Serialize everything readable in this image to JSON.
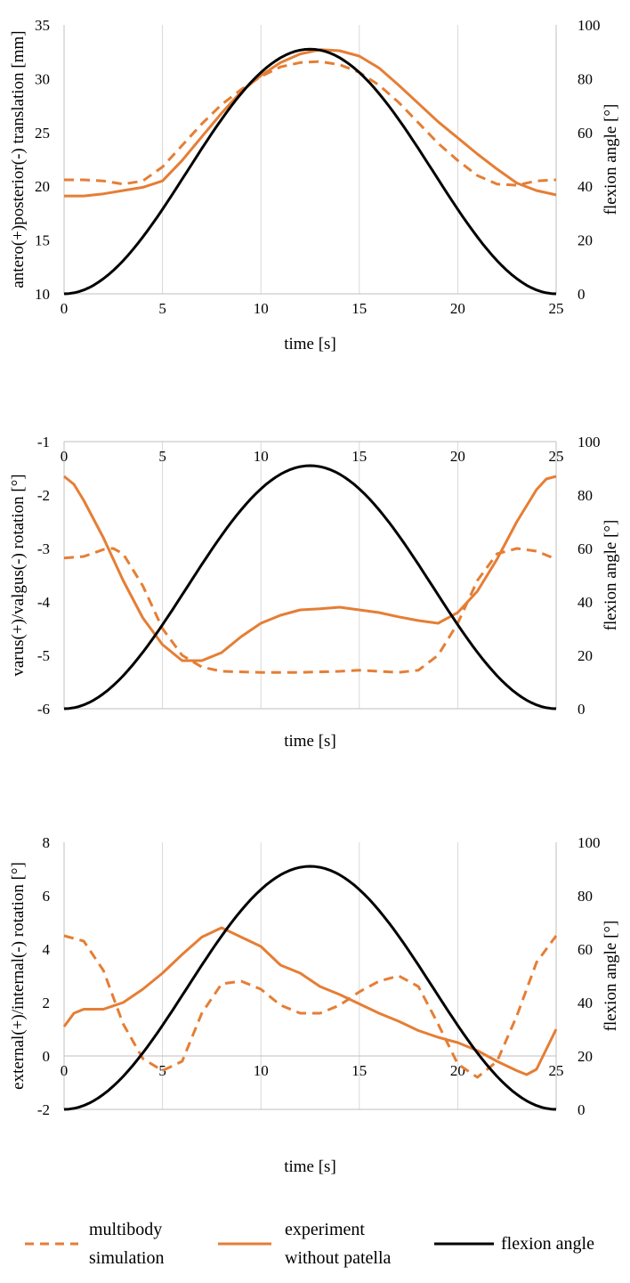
{
  "colors": {
    "simulation": "#E57E35",
    "experiment": "#E57E35",
    "flexion": "#000000",
    "grid": "#d9d9d9",
    "axis": "#bfbfbf"
  },
  "legend": [
    {
      "label": "multibody simulation",
      "lines": [
        "multibody",
        "simulation"
      ],
      "style": "dashed",
      "color": "#E57E35"
    },
    {
      "label": "experiment without patella",
      "lines": [
        "experiment",
        "without patella"
      ],
      "style": "solid",
      "color": "#E57E35"
    },
    {
      "label": "flexion angle",
      "lines": [
        "flexion angle"
      ],
      "style": "solid",
      "color": "#000000"
    }
  ],
  "chart_data": [
    {
      "type": "line",
      "title": "",
      "xlabel": "time [s]",
      "ylabel": "antero(+)posterior(-) translation [mm]",
      "y2label": "flexion angle [°]",
      "xlim": [
        0,
        25
      ],
      "ylim": [
        10,
        35
      ],
      "y2lim": [
        0,
        100
      ],
      "xticks": [
        "0",
        "5",
        "10",
        "15",
        "20",
        "25"
      ],
      "yticks": [
        "10",
        "15",
        "20",
        "25",
        "30",
        "35"
      ],
      "y2ticks": [
        "0",
        "20",
        "40",
        "60",
        "80",
        "100"
      ],
      "x_axis_position": "bottom",
      "grid": "vertical",
      "series": [
        {
          "name": "multibody simulation",
          "axis": "left",
          "style": "dashed",
          "points": [
            [
              0,
              20.6
            ],
            [
              1,
              20.6
            ],
            [
              2,
              20.5
            ],
            [
              3,
              20.2
            ],
            [
              4,
              20.5
            ],
            [
              5,
              21.8
            ],
            [
              6,
              23.8
            ],
            [
              7,
              25.8
            ],
            [
              8,
              27.6
            ],
            [
              9,
              29.0
            ],
            [
              10,
              30.2
            ],
            [
              11,
              31.1
            ],
            [
              12,
              31.5
            ],
            [
              13,
              31.6
            ],
            [
              14,
              31.3
            ],
            [
              15,
              30.6
            ],
            [
              16,
              29.4
            ],
            [
              17,
              27.8
            ],
            [
              18,
              25.9
            ],
            [
              19,
              24.0
            ],
            [
              20,
              22.4
            ],
            [
              21,
              21.0
            ],
            [
              22,
              20.2
            ],
            [
              23,
              20.1
            ],
            [
              24,
              20.5
            ],
            [
              25,
              20.6
            ]
          ]
        },
        {
          "name": "experiment without patella",
          "axis": "left",
          "style": "solid",
          "points": [
            [
              0,
              19.1
            ],
            [
              1,
              19.1
            ],
            [
              2,
              19.3
            ],
            [
              3,
              19.6
            ],
            [
              4,
              19.9
            ],
            [
              5,
              20.5
            ],
            [
              6,
              22.4
            ],
            [
              7,
              24.6
            ],
            [
              8,
              26.8
            ],
            [
              9,
              28.8
            ],
            [
              10,
              30.3
            ],
            [
              11,
              31.5
            ],
            [
              12,
              32.3
            ],
            [
              13,
              32.7
            ],
            [
              14,
              32.6
            ],
            [
              15,
              32.1
            ],
            [
              16,
              31.0
            ],
            [
              17,
              29.4
            ],
            [
              18,
              27.7
            ],
            [
              19,
              26.0
            ],
            [
              20,
              24.5
            ],
            [
              21,
              23.0
            ],
            [
              22,
              21.6
            ],
            [
              23,
              20.3
            ],
            [
              24,
              19.6
            ],
            [
              25,
              19.2
            ]
          ]
        },
        {
          "name": "flexion angle",
          "axis": "right",
          "style": "solid",
          "peak": 91,
          "period": 25
        }
      ]
    },
    {
      "type": "line",
      "title": "",
      "xlabel": "time [s]",
      "ylabel": "varus(+)/valgus(-) rotation [°]",
      "y2label": "flexion angle [°]",
      "xlim": [
        0,
        25
      ],
      "ylim": [
        -6,
        -1
      ],
      "y2lim": [
        0,
        100
      ],
      "xticks": [
        "0",
        "5",
        "10",
        "15",
        "20",
        "25"
      ],
      "yticks": [
        "-6",
        "-5",
        "-4",
        "-3",
        "-2",
        "-1"
      ],
      "y2ticks": [
        "0",
        "20",
        "40",
        "60",
        "80",
        "100"
      ],
      "x_axis_position": "top",
      "grid": "vertical",
      "series": [
        {
          "name": "multibody simulation",
          "axis": "left",
          "style": "dashed",
          "points": [
            [
              0,
              -3.18
            ],
            [
              1,
              -3.15
            ],
            [
              2,
              -3.02
            ],
            [
              2.5,
              -3.0
            ],
            [
              3,
              -3.1
            ],
            [
              4,
              -3.7
            ],
            [
              5,
              -4.5
            ],
            [
              6,
              -5.0
            ],
            [
              7,
              -5.22
            ],
            [
              8,
              -5.3
            ],
            [
              10,
              -5.32
            ],
            [
              12,
              -5.32
            ],
            [
              14,
              -5.3
            ],
            [
              15,
              -5.28
            ],
            [
              16,
              -5.3
            ],
            [
              17,
              -5.32
            ],
            [
              18,
              -5.28
            ],
            [
              19,
              -5.0
            ],
            [
              20,
              -4.4
            ],
            [
              21,
              -3.6
            ],
            [
              22,
              -3.1
            ],
            [
              23,
              -3.0
            ],
            [
              24,
              -3.05
            ],
            [
              25,
              -3.2
            ]
          ]
        },
        {
          "name": "experiment without patella",
          "axis": "left",
          "style": "solid",
          "points": [
            [
              0,
              -1.65
            ],
            [
              0.5,
              -1.8
            ],
            [
              1,
              -2.1
            ],
            [
              2,
              -2.8
            ],
            [
              3,
              -3.6
            ],
            [
              4,
              -4.3
            ],
            [
              5,
              -4.8
            ],
            [
              6,
              -5.1
            ],
            [
              7,
              -5.1
            ],
            [
              8,
              -4.95
            ],
            [
              9,
              -4.65
            ],
            [
              10,
              -4.4
            ],
            [
              11,
              -4.25
            ],
            [
              12,
              -4.15
            ],
            [
              13,
              -4.13
            ],
            [
              14,
              -4.1
            ],
            [
              15,
              -4.15
            ],
            [
              16,
              -4.2
            ],
            [
              17,
              -4.28
            ],
            [
              18,
              -4.35
            ],
            [
              19,
              -4.4
            ],
            [
              20,
              -4.2
            ],
            [
              21,
              -3.8
            ],
            [
              22,
              -3.2
            ],
            [
              23,
              -2.5
            ],
            [
              24,
              -1.9
            ],
            [
              24.5,
              -1.7
            ],
            [
              25,
              -1.65
            ]
          ]
        },
        {
          "name": "flexion angle",
          "axis": "right",
          "style": "solid",
          "peak": 91,
          "period": 25
        }
      ]
    },
    {
      "type": "line",
      "title": "",
      "xlabel": "time [s]",
      "ylabel": "external(+)/internal(-) rotation [°]",
      "y2label": "flexion angle [°]",
      "xlim": [
        0,
        25
      ],
      "ylim": [
        -2,
        8
      ],
      "y2lim": [
        0,
        100
      ],
      "xticks": [
        "0",
        "5",
        "10",
        "15",
        "20",
        "25"
      ],
      "yticks": [
        "-2",
        "0",
        "2",
        "4",
        "6",
        "8"
      ],
      "y2ticks": [
        "0",
        "20",
        "40",
        "60",
        "80",
        "100"
      ],
      "x_axis_position": "zero",
      "grid": "vertical",
      "series": [
        {
          "name": "multibody simulation",
          "axis": "left",
          "style": "dashed",
          "points": [
            [
              0,
              4.5
            ],
            [
              1,
              4.3
            ],
            [
              2,
              3.2
            ],
            [
              3,
              1.2
            ],
            [
              4,
              -0.1
            ],
            [
              5,
              -0.55
            ],
            [
              6,
              -0.2
            ],
            [
              7,
              1.6
            ],
            [
              8,
              2.7
            ],
            [
              9,
              2.8
            ],
            [
              10,
              2.5
            ],
            [
              11,
              1.9
            ],
            [
              12,
              1.6
            ],
            [
              13,
              1.6
            ],
            [
              14,
              1.9
            ],
            [
              15,
              2.4
            ],
            [
              16,
              2.8
            ],
            [
              17,
              3.0
            ],
            [
              18,
              2.6
            ],
            [
              19,
              1.2
            ],
            [
              20,
              -0.3
            ],
            [
              21,
              -0.8
            ],
            [
              22,
              -0.2
            ],
            [
              23,
              1.5
            ],
            [
              24,
              3.5
            ],
            [
              25,
              4.5
            ]
          ]
        },
        {
          "name": "experiment without patella",
          "axis": "left",
          "style": "solid",
          "points": [
            [
              0,
              1.1
            ],
            [
              0.5,
              1.6
            ],
            [
              1,
              1.75
            ],
            [
              2,
              1.75
            ],
            [
              3,
              2.0
            ],
            [
              4,
              2.5
            ],
            [
              5,
              3.1
            ],
            [
              6,
              3.8
            ],
            [
              7,
              4.45
            ],
            [
              8,
              4.8
            ],
            [
              9,
              4.45
            ],
            [
              10,
              4.1
            ],
            [
              11,
              3.4
            ],
            [
              12,
              3.1
            ],
            [
              13,
              2.6
            ],
            [
              14,
              2.3
            ],
            [
              15,
              1.95
            ],
            [
              16,
              1.6
            ],
            [
              17,
              1.3
            ],
            [
              18,
              0.95
            ],
            [
              19,
              0.7
            ],
            [
              20,
              0.5
            ],
            [
              21,
              0.2
            ],
            [
              22,
              -0.2
            ],
            [
              23,
              -0.55
            ],
            [
              23.5,
              -0.7
            ],
            [
              24,
              -0.5
            ],
            [
              25,
              1.0
            ]
          ]
        },
        {
          "name": "flexion angle",
          "axis": "right",
          "style": "solid",
          "peak": 91,
          "period": 25
        }
      ]
    }
  ]
}
